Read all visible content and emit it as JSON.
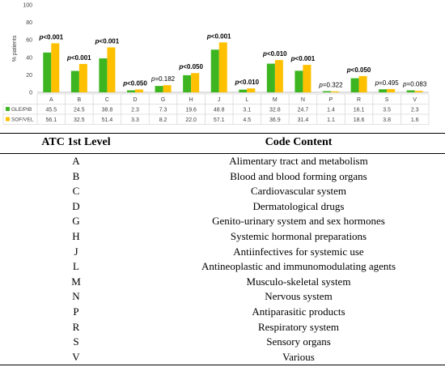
{
  "chart_data": {
    "type": "bar",
    "ylabel": "% patients",
    "ylim": [
      0,
      100
    ],
    "yticks": [
      0,
      20,
      40,
      60,
      80,
      100
    ],
    "grid": false,
    "legend_placement": "table-left",
    "categories": [
      "A",
      "B",
      "C",
      "D",
      "G",
      "H",
      "J",
      "L",
      "M",
      "N",
      "P",
      "R",
      "S",
      "V"
    ],
    "series": [
      {
        "name": "GLE/PIB",
        "color": "#3cb521",
        "values": [
          45.5,
          24.5,
          38.8,
          2.3,
          7.3,
          19.6,
          48.8,
          3.1,
          32.8,
          24.7,
          1.4,
          16.1,
          3.5,
          2.3
        ]
      },
      {
        "name": "SOF/VEL",
        "color": "#ffc000",
        "values": [
          56.1,
          32.5,
          51.4,
          3.3,
          8.2,
          22.0,
          57.1,
          4.5,
          36.9,
          31.4,
          1.1,
          18.6,
          3.8,
          1.6
        ]
      }
    ],
    "value_table": {
      "GLE/PIB": [
        "45.5",
        "24.5",
        "38.8",
        "2.3",
        "7.3",
        "19.6",
        "48.8",
        "3.1",
        "32.8",
        "24.7",
        "1.4",
        "16.1",
        "3.5",
        "2.3"
      ],
      "SOF/VEL": [
        "56.1",
        "32.5",
        "51.4",
        "3.3",
        "8.2",
        "22.0",
        "57.1",
        "4.5",
        "36.9",
        "31.4",
        "1.1",
        "18.6",
        "3.8",
        "1.6"
      ]
    },
    "annotations": [
      {
        "p": "p",
        "rest": "<0.001",
        "bold": true
      },
      {
        "p": "p",
        "rest": "<0.001",
        "bold": true
      },
      {
        "p": "p",
        "rest": "<0.001",
        "bold": true
      },
      {
        "p": "p",
        "rest": "<0.050",
        "bold": true
      },
      {
        "p": "p",
        "rest": "=0.182",
        "bold": false
      },
      {
        "p": "p",
        "rest": "<0.050",
        "bold": true
      },
      {
        "p": "p",
        "rest": "<0.001",
        "bold": true
      },
      {
        "p": "p",
        "rest": "<0.010",
        "bold": true
      },
      {
        "p": "p",
        "rest": "<0.010",
        "bold": true
      },
      {
        "p": "p",
        "rest": "<0.001",
        "bold": true
      },
      {
        "p": "p",
        "rest": "=0.322",
        "bold": false
      },
      {
        "p": "p",
        "rest": "<0.050",
        "bold": true
      },
      {
        "p": "p",
        "rest": "=0.495",
        "bold": false
      },
      {
        "p": "p",
        "rest": "=0.083",
        "bold": false
      }
    ]
  },
  "atc_table": {
    "header": {
      "code": "ATC 1st Level",
      "content": "Code Content"
    },
    "rows": [
      {
        "code": "A",
        "content": "Alimentary tract and metabolism"
      },
      {
        "code": "B",
        "content": "Blood and blood forming organs"
      },
      {
        "code": "C",
        "content": "Cardiovascular system"
      },
      {
        "code": "D",
        "content": "Dermatological drugs"
      },
      {
        "code": "G",
        "content": "Genito-urinary system and sex hormones"
      },
      {
        "code": "H",
        "content": "Systemic hormonal preparations"
      },
      {
        "code": "J",
        "content": "Antiinfectives for systemic use"
      },
      {
        "code": "L",
        "content": "Antineoplastic and immunomodulating agents"
      },
      {
        "code": "M",
        "content": "Musculo-skeletal system"
      },
      {
        "code": "N",
        "content": "Nervous system"
      },
      {
        "code": "P",
        "content": "Antiparasitic products"
      },
      {
        "code": "R",
        "content": "Respiratory system"
      },
      {
        "code": "S",
        "content": "Sensory organs"
      },
      {
        "code": "V",
        "content": "Various"
      }
    ]
  }
}
